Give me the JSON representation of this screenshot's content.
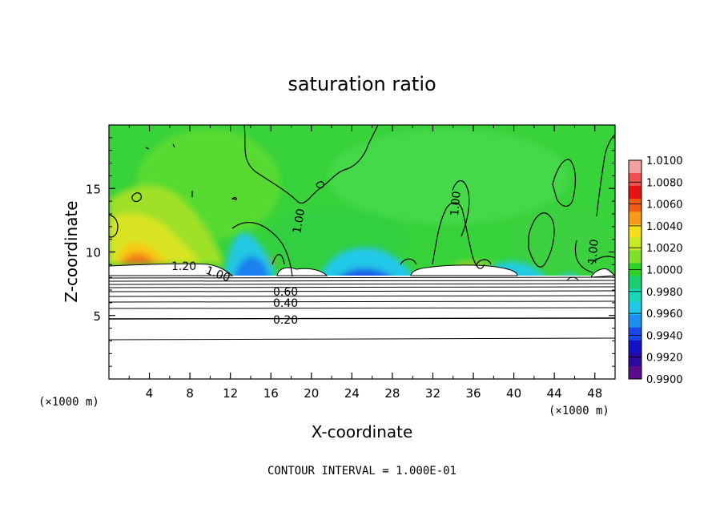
{
  "chart_data": {
    "type": "heatmap",
    "title": "saturation ratio",
    "xlabel": "X-coordinate",
    "ylabel": "Z-coordinate",
    "x_unit": "(×1000 m)",
    "y_unit": "(×1000 m)",
    "xlim": [
      0,
      50
    ],
    "ylim": [
      0,
      20
    ],
    "x_ticks": [
      4,
      8,
      12,
      16,
      20,
      24,
      28,
      32,
      36,
      40,
      44,
      48
    ],
    "y_ticks": [
      5,
      10,
      15
    ],
    "colorbar": {
      "min": 0.99,
      "max": 1.01,
      "tick_labels": [
        "1.0100",
        "1.0080",
        "1.0060",
        "1.0040",
        "1.0020",
        "1.0000",
        "0.9980",
        "0.9960",
        "0.9940",
        "0.9920",
        "0.9900"
      ],
      "colors": [
        "#f4a0a0",
        "#ee5050",
        "#e81010",
        "#f05c10",
        "#f89a18",
        "#f8de18",
        "#c8e820",
        "#7ee02a",
        "#2cd22a",
        "#18d070",
        "#16d8b8",
        "#20c8e8",
        "#1c8ef0",
        "#1a48e8",
        "#1410c8",
        "#2c0aa0",
        "#5a0c8a"
      ]
    },
    "contour_interval_label": "CONTOUR INTERVAL = 1.000E-01",
    "contour_labels": [
      "1.20",
      "1.00",
      "1.00",
      "1.00",
      "1.00",
      "0.60",
      "0.40",
      "0.20"
    ],
    "contour_levels_below_cloud": [
      0.1,
      0.2,
      0.3,
      0.4,
      0.5,
      0.6,
      0.7,
      0.8,
      0.9
    ],
    "cloud_base_z": 8.5,
    "field_regions": {
      "background_value": 0.9988,
      "warm_lobe": {
        "x": [
          0,
          10
        ],
        "z": [
          8.8,
          14
        ],
        "peak": 1.0058
      },
      "dry_pockets": [
        {
          "x": [
            12,
            16
          ],
          "z": [
            7.6,
            12
          ],
          "min": 0.9935
        },
        {
          "x": [
            18,
            30
          ],
          "z": [
            7.6,
            9.5
          ],
          "min": 0.9935
        },
        {
          "x": [
            34,
            42
          ],
          "z": [
            7.6,
            9.8
          ],
          "min": 0.9945
        }
      ]
    }
  }
}
